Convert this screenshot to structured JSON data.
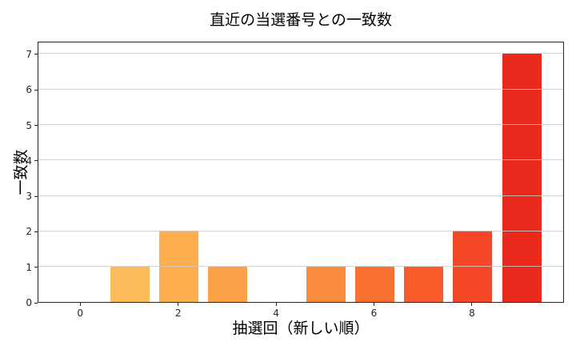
{
  "title": "直近の当選番号との一致数",
  "chart_data": {
    "type": "bar",
    "title": "直近の当選番号との一致数",
    "xlabel": "抽選回（新しい順）",
    "ylabel": "一致数",
    "categories": [
      0,
      1,
      2,
      3,
      4,
      5,
      6,
      7,
      8,
      9
    ],
    "values": [
      0,
      1,
      2,
      1,
      0,
      1,
      1,
      1,
      2,
      7
    ],
    "bar_colors": [
      "#fec667",
      "#fdba5a",
      "#fcae4c",
      "#fba147",
      "#fb9641",
      "#fa8a3c",
      "#f97231",
      "#f85b2a",
      "#f34727",
      "#e8291c"
    ],
    "bar_width": 0.8,
    "xticks": [
      0,
      2,
      4,
      6,
      8
    ],
    "yticks": [
      0,
      1,
      2,
      3,
      4,
      5,
      6,
      7
    ],
    "xlim": [
      -0.87,
      9.88
    ],
    "ylim": [
      0,
      7.36
    ],
    "grid": "horizontal",
    "grid_color": "rgba(205,205,205,0.85)",
    "spine_color": "#262626",
    "background": "#ffffff",
    "legend": "none"
  }
}
